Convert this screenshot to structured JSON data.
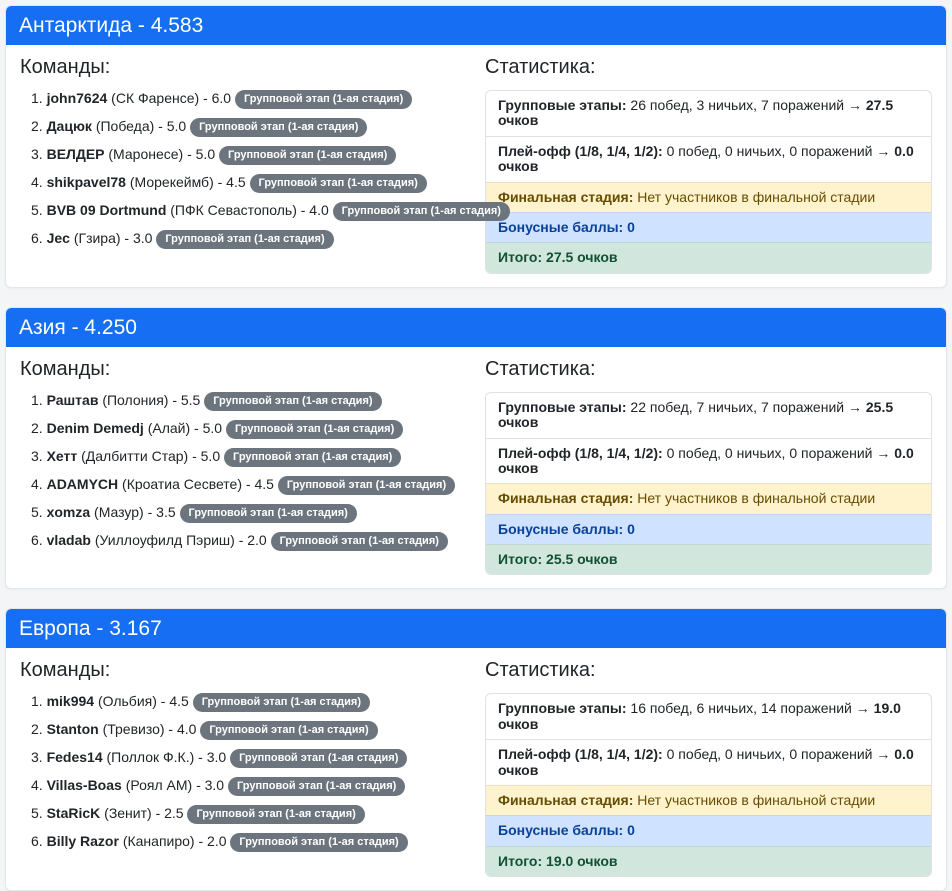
{
  "colors": {
    "header_blue": "#166ff3",
    "badge_gray": "#6c757d",
    "warning_bg": "#fff3cd",
    "info_bg": "#cfe2ff",
    "success_bg": "#d1e7dd"
  },
  "cards": [
    {
      "title": "Антарктида - 4.583",
      "teams_heading": "Команды:",
      "stats_heading": "Статистика:",
      "teams": [
        {
          "num": "1.",
          "name": "john7624",
          "rest": "(СК Фаренсе) - 6.0",
          "badge": "Групповой этап (1-ая стадия)"
        },
        {
          "num": "2.",
          "name": "Дацюк",
          "rest": "(Победа) - 5.0",
          "badge": "Групповой этап (1-ая стадия)"
        },
        {
          "num": "3.",
          "name": "ВЕЛДЕР",
          "rest": "(Маронесе) - 5.0",
          "badge": "Групповой этап (1-ая стадия)"
        },
        {
          "num": "4.",
          "name": "shikpavel78",
          "rest": "(Морекеймб) - 4.5",
          "badge": "Групповой этап (1-ая стадия)"
        },
        {
          "num": "5.",
          "name": "BVB 09 Dortmund",
          "rest": "(ПФК Севастополь) - 4.0",
          "badge": "Групповой этап (1-ая стадия)"
        },
        {
          "num": "6.",
          "name": "Jec",
          "rest": "(Гзира) - 3.0",
          "badge": "Групповой этап (1-ая стадия)"
        }
      ],
      "stats": {
        "group": {
          "label": "Групповые этапы:",
          "text": "26 побед, 3 ничьих, 7 поражений →",
          "points": "27.5 очков"
        },
        "playoff": {
          "label": "Плей-офф (1/8, 1/4, 1/2):",
          "text": "0 побед, 0 ничьих, 0 поражений →",
          "points": "0.0 очков"
        },
        "final": {
          "label": "Финальная стадия:",
          "text": "Нет участников в финальной стадии"
        },
        "bonus": {
          "text": "Бонусные баллы: 0"
        },
        "total": {
          "text": "Итого: 27.5 очков"
        }
      }
    },
    {
      "title": "Азия - 4.250",
      "teams_heading": "Команды:",
      "stats_heading": "Статистика:",
      "teams": [
        {
          "num": "1.",
          "name": "Раштав",
          "rest": "(Полония) - 5.5",
          "badge": "Групповой этап (1-ая стадия)"
        },
        {
          "num": "2.",
          "name": "Denim Demedj",
          "rest": "(Алай) - 5.0",
          "badge": "Групповой этап (1-ая стадия)"
        },
        {
          "num": "3.",
          "name": "Хетт",
          "rest": "(Далбитти Стар) - 5.0",
          "badge": "Групповой этап (1-ая стадия)"
        },
        {
          "num": "4.",
          "name": "ADAMYCH",
          "rest": "(Кроатиа Сесвете) - 4.5",
          "badge": "Групповой этап (1-ая стадия)"
        },
        {
          "num": "5.",
          "name": "xomza",
          "rest": "(Мазур) - 3.5",
          "badge": "Групповой этап (1-ая стадия)"
        },
        {
          "num": "6.",
          "name": "vladab",
          "rest": "(Уиллоуфилд Пэриш) - 2.0",
          "badge": "Групповой этап (1-ая стадия)"
        }
      ],
      "stats": {
        "group": {
          "label": "Групповые этапы:",
          "text": "22 побед, 7 ничьих, 7 поражений →",
          "points": "25.5 очков"
        },
        "playoff": {
          "label": "Плей-офф (1/8, 1/4, 1/2):",
          "text": "0 побед, 0 ничьих, 0 поражений →",
          "points": "0.0 очков"
        },
        "final": {
          "label": "Финальная стадия:",
          "text": "Нет участников в финальной стадии"
        },
        "bonus": {
          "text": "Бонусные баллы: 0"
        },
        "total": {
          "text": "Итого: 25.5 очков"
        }
      }
    },
    {
      "title": "Европа - 3.167",
      "teams_heading": "Команды:",
      "stats_heading": "Статистика:",
      "teams": [
        {
          "num": "1.",
          "name": "mik994",
          "rest": "(Ольбия) - 4.5",
          "badge": "Групповой этап (1-ая стадия)"
        },
        {
          "num": "2.",
          "name": "Stanton",
          "rest": "(Тревизо) - 4.0",
          "badge": "Групповой этап (1-ая стадия)"
        },
        {
          "num": "3.",
          "name": "Fedes14",
          "rest": "(Поллок Ф.К.) - 3.0",
          "badge": "Групповой этап (1-ая стадия)"
        },
        {
          "num": "4.",
          "name": "Villas-Boas",
          "rest": "(Роял АМ) - 3.0",
          "badge": "Групповой этап (1-ая стадия)"
        },
        {
          "num": "5.",
          "name": "StaRicK",
          "rest": "(Зенит) - 2.5",
          "badge": "Групповой этап (1-ая стадия)"
        },
        {
          "num": "6.",
          "name": "Billy Razor",
          "rest": "(Канапиро) - 2.0",
          "badge": "Групповой этап (1-ая стадия)"
        }
      ],
      "stats": {
        "group": {
          "label": "Групповые этапы:",
          "text": "16 побед, 6 ничьих, 14 поражений →",
          "points": "19.0 очков"
        },
        "playoff": {
          "label": "Плей-офф (1/8, 1/4, 1/2):",
          "text": "0 побед, 0 ничьих, 0 поражений →",
          "points": "0.0 очков"
        },
        "final": {
          "label": "Финальная стадия:",
          "text": "Нет участников в финальной стадии"
        },
        "bonus": {
          "text": "Бонусные баллы: 0"
        },
        "total": {
          "text": "Итого: 19.0 очков"
        }
      }
    }
  ]
}
